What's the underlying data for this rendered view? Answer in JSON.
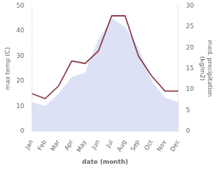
{
  "chart_data": {
    "type": "line",
    "categories": [
      "Jan",
      "Feb",
      "Mar",
      "Apr",
      "May",
      "Jun",
      "Jul",
      "Aug",
      "Sep",
      "Oct",
      "Nov",
      "Dec"
    ],
    "series": [
      {
        "type": "line",
        "color": "#8b3a4a",
        "values": [
          15,
          13,
          18,
          28,
          27,
          32,
          46,
          46,
          30,
          22,
          16,
          16
        ]
      },
      {
        "type": "area",
        "color": "#c0c8ee",
        "axis": "y2",
        "values": [
          7,
          6,
          9,
          13,
          14,
          22,
          27,
          25,
          20,
          12,
          8,
          7
        ]
      }
    ],
    "x_label": "date (month)",
    "y_label": "max temp (C)",
    "y2_label": "med. precipitation\n(kg/m2)",
    "ylim": [
      0,
      50
    ],
    "yticks": [
      0,
      10,
      20,
      30,
      40,
      50
    ],
    "y2lim": [
      0,
      30
    ],
    "y2ticks": [
      0,
      5,
      10,
      15,
      20,
      25,
      30
    ],
    "grid": false,
    "legend": false
  }
}
